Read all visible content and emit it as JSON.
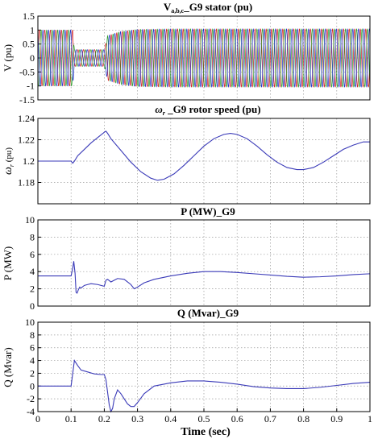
{
  "figure": {
    "xlabel": "Time (sec)"
  },
  "chart_data": [
    {
      "type": "line",
      "title": "V_G9 stator (pu)",
      "title_main": "V",
      "title_sub": "a,b,c",
      "title_rest": "_G9 stator (pu)",
      "ylabel": "V (pu)",
      "xlim": [
        0,
        1
      ],
      "ylim": [
        -1.5,
        1.5
      ],
      "yticks": [
        -1.5,
        -1,
        -0.5,
        0,
        0.5,
        1,
        1.5
      ],
      "xticks": [
        0,
        0.1,
        0.2,
        0.3,
        0.4,
        0.5,
        0.6,
        0.7,
        0.8,
        0.9,
        1
      ],
      "grid": true,
      "series": [
        {
          "color": "#d42020",
          "frequency_hz": 60,
          "phase_deg": 0
        },
        {
          "color": "#2a9d2a",
          "frequency_hz": 60,
          "phase_deg": -120
        },
        {
          "color": "#2233cc",
          "frequency_hz": 60,
          "phase_deg": 120
        }
      ],
      "envelope": [
        [
          0,
          1.0
        ],
        [
          0.105,
          1.0
        ],
        [
          0.11,
          0.3
        ],
        [
          0.2,
          0.3
        ],
        [
          0.21,
          0.8
        ],
        [
          0.25,
          0.95
        ],
        [
          0.3,
          1.02
        ],
        [
          0.4,
          1.04
        ],
        [
          1,
          1.04
        ]
      ]
    },
    {
      "type": "line",
      "title": "ω_r _G9 rotor speed (pu)",
      "title_main": "ω",
      "title_sub": "r",
      "title_rest": " _G9 rotor speed (pu)",
      "ylabel": "ω_r (pu)",
      "ylabel_main": "ω",
      "ylabel_sub": "r",
      "ylabel_rest": " (pu)",
      "xlim": [
        0,
        1
      ],
      "ylim": [
        1.16,
        1.24
      ],
      "yticks": [
        1.16,
        1.18,
        1.2,
        1.22,
        1.24
      ],
      "xticks": [
        0,
        0.1,
        0.2,
        0.3,
        0.4,
        0.5,
        0.6,
        0.7,
        0.8,
        0.9,
        1
      ],
      "ytick_labels": [
        "",
        "1.18",
        "1.2",
        "1.22",
        "1.24"
      ],
      "grid": true,
      "series": [
        {
          "color": "#3a3ab8",
          "x": [
            0,
            0.1,
            0.105,
            0.11,
            0.12,
            0.14,
            0.16,
            0.18,
            0.2,
            0.205,
            0.21,
            0.22,
            0.25,
            0.28,
            0.31,
            0.34,
            0.36,
            0.38,
            0.41,
            0.44,
            0.47,
            0.5,
            0.53,
            0.56,
            0.58,
            0.6,
            0.63,
            0.66,
            0.69,
            0.72,
            0.75,
            0.78,
            0.8,
            0.83,
            0.86,
            0.89,
            0.92,
            0.95,
            0.98,
            1.0
          ],
          "y": [
            1.2,
            1.2,
            1.198,
            1.2,
            1.205,
            1.211,
            1.217,
            1.222,
            1.227,
            1.228,
            1.226,
            1.221,
            1.21,
            1.199,
            1.19,
            1.184,
            1.182,
            1.183,
            1.188,
            1.196,
            1.205,
            1.214,
            1.221,
            1.225,
            1.226,
            1.225,
            1.221,
            1.214,
            1.206,
            1.199,
            1.194,
            1.192,
            1.192,
            1.194,
            1.199,
            1.205,
            1.211,
            1.215,
            1.218,
            1.218
          ]
        }
      ]
    },
    {
      "type": "line",
      "title": "P (MW)_G9",
      "ylabel": "P (MW)",
      "xlim": [
        0,
        1
      ],
      "ylim": [
        0,
        10
      ],
      "yticks": [
        0,
        2,
        4,
        6,
        8,
        10
      ],
      "xticks": [
        0,
        0.1,
        0.2,
        0.3,
        0.4,
        0.5,
        0.6,
        0.7,
        0.8,
        0.9,
        1
      ],
      "grid": true,
      "series": [
        {
          "color": "#3a3ab8",
          "x": [
            0,
            0.1,
            0.105,
            0.108,
            0.112,
            0.115,
            0.118,
            0.122,
            0.126,
            0.13,
            0.14,
            0.15,
            0.16,
            0.18,
            0.2,
            0.205,
            0.21,
            0.22,
            0.24,
            0.26,
            0.28,
            0.29,
            0.3,
            0.32,
            0.35,
            0.4,
            0.45,
            0.5,
            0.55,
            0.6,
            0.65,
            0.7,
            0.75,
            0.8,
            0.85,
            0.9,
            0.95,
            1.0
          ],
          "y": [
            3.5,
            3.5,
            4.4,
            5.2,
            3.8,
            1.6,
            1.5,
            1.9,
            2.2,
            2.1,
            2.4,
            2.5,
            2.6,
            2.5,
            2.3,
            3.0,
            3.1,
            2.8,
            3.2,
            3.1,
            2.5,
            2.0,
            2.2,
            2.7,
            3.1,
            3.5,
            3.8,
            4.0,
            4.0,
            3.9,
            3.75,
            3.6,
            3.45,
            3.35,
            3.4,
            3.5,
            3.65,
            3.75
          ]
        }
      ]
    },
    {
      "type": "line",
      "title": "Q (Mvar)_G9",
      "ylabel": "Q (Mvar)",
      "xlabel": "Time (sec)",
      "xlim": [
        0,
        1
      ],
      "ylim": [
        -4,
        10
      ],
      "yticks": [
        -4,
        -2,
        0,
        2,
        4,
        6,
        8,
        10
      ],
      "xticks": [
        0,
        0.1,
        0.2,
        0.3,
        0.4,
        0.5,
        0.6,
        0.7,
        0.8,
        0.9,
        1
      ],
      "grid": true,
      "series": [
        {
          "color": "#3a3ab8",
          "x": [
            0,
            0.1,
            0.105,
            0.11,
            0.12,
            0.13,
            0.15,
            0.17,
            0.19,
            0.2,
            0.205,
            0.21,
            0.215,
            0.22,
            0.225,
            0.23,
            0.24,
            0.25,
            0.26,
            0.27,
            0.28,
            0.29,
            0.3,
            0.32,
            0.35,
            0.4,
            0.45,
            0.5,
            0.55,
            0.6,
            0.65,
            0.7,
            0.75,
            0.8,
            0.85,
            0.9,
            0.95,
            1.0
          ],
          "y": [
            0,
            0,
            2.0,
            4.0,
            3.2,
            2.5,
            2.2,
            1.9,
            1.8,
            1.8,
            1.0,
            -1.0,
            -3.0,
            -4.0,
            -3.5,
            -2.0,
            -0.6,
            -1.2,
            -2.0,
            -2.8,
            -3.2,
            -3.2,
            -2.6,
            -1.2,
            0.0,
            0.5,
            0.8,
            0.8,
            0.6,
            0.3,
            -0.1,
            -0.3,
            -0.4,
            -0.4,
            -0.2,
            0.1,
            0.4,
            0.6
          ]
        }
      ]
    }
  ]
}
